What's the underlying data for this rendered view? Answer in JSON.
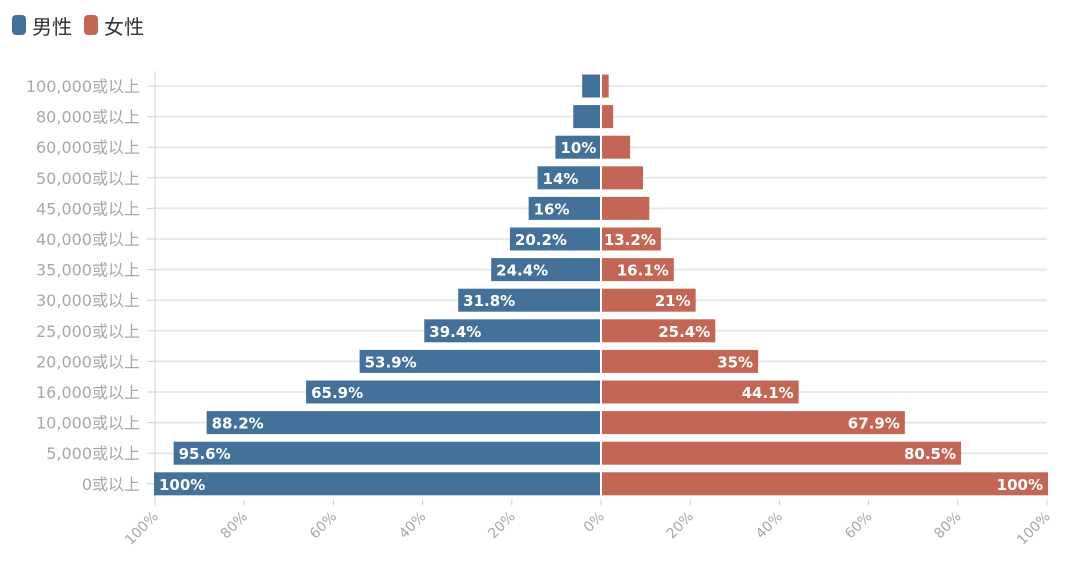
{
  "colors": {
    "male": "#43719a",
    "female": "#c46655",
    "grid": "#e8e8e8",
    "axis_text": "#a8a8a8",
    "bar_label": "#ffffff"
  },
  "chart_data": {
    "type": "bar",
    "orientation": "horizontal-diverging",
    "categories": [
      "100,000或以上",
      "80,000或以上",
      "60,000或以上",
      "50,000或以上",
      "45,000或以上",
      "40,000或以上",
      "35,000或以上",
      "30,000或以上",
      "25,000或以上",
      "20,000或以上",
      "16,000或以上",
      "10,000或以上",
      "5,000或以上",
      "0或以上"
    ],
    "series": [
      {
        "name": "男性",
        "side": "left",
        "values": [
          4,
          6,
          10,
          14,
          16,
          20.2,
          24.4,
          31.8,
          39.4,
          53.9,
          65.9,
          88.2,
          95.6,
          100
        ],
        "labels": [
          "",
          "",
          "10%",
          "14%",
          "16%",
          "20.2%",
          "24.4%",
          "31.8%",
          "39.4%",
          "53.9%",
          "65.9%",
          "88.2%",
          "95.6%",
          "100%"
        ]
      },
      {
        "name": "女性",
        "side": "right",
        "values": [
          1.5,
          2.5,
          6.3,
          9.2,
          10.6,
          13.2,
          16.1,
          21,
          25.4,
          35,
          44.1,
          67.9,
          80.5,
          100
        ],
        "labels": [
          "",
          "",
          "",
          "",
          "",
          "13.2%",
          "16.1%",
          "21%",
          "25.4%",
          "35%",
          "44.1%",
          "67.9%",
          "80.5%",
          "100%"
        ]
      }
    ],
    "xlim": [
      -100,
      100
    ],
    "xticks": [
      "100%",
      "80%",
      "60%",
      "40%",
      "20%",
      "0%",
      "20%",
      "40%",
      "60%",
      "80%",
      "100%"
    ],
    "grid": true,
    "legend_position": "top-left"
  }
}
